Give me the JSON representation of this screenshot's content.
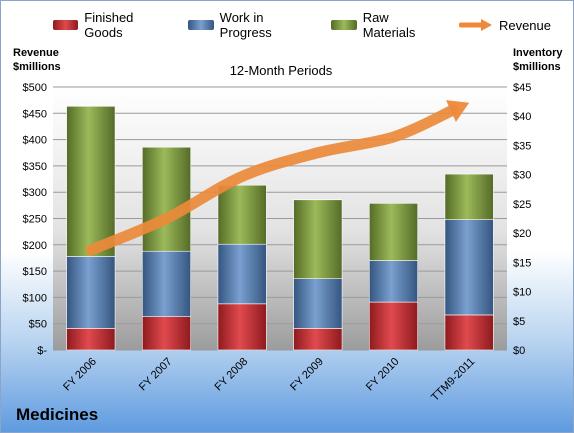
{
  "legend": {
    "finished": "Finished Goods",
    "wip": "Work in Progress",
    "raw": "Raw Materials",
    "revenue": "Revenue"
  },
  "axis": {
    "left_title_line1": "Revenue",
    "left_title_line2": "$millions",
    "right_title_line1": "Inventory",
    "right_title_line2": "$millions"
  },
  "subtitle": "12-Month Periods",
  "brand": "Medicines",
  "colors": {
    "finished": "#c0282c",
    "wip": "#4f78b0",
    "raw": "#77963a",
    "revenue": "#ec8a3a"
  },
  "chart_data": {
    "type": "bar",
    "stacked": true,
    "categories": [
      "FY 2006",
      "FY 2007",
      "FY 2008",
      "FY 2009",
      "FY 2010",
      "TTM9-2011"
    ],
    "series": [
      {
        "name": "Finished Goods",
        "axis": "right",
        "values": [
          3.7,
          5.7,
          7.9,
          3.7,
          8.2,
          6.0
        ]
      },
      {
        "name": "Work in Progress",
        "axis": "right",
        "values": [
          12.3,
          11.2,
          10.2,
          8.5,
          7.1,
          16.3
        ]
      },
      {
        "name": "Raw Materials",
        "axis": "right",
        "values": [
          25.7,
          17.8,
          10.1,
          13.5,
          9.8,
          7.8
        ]
      },
      {
        "name": "Revenue",
        "axis": "left",
        "type": "line",
        "values": [
          190,
          250,
          330,
          375,
          405,
          470
        ]
      }
    ],
    "left_axis": {
      "min": 0,
      "max": 500,
      "step": 50,
      "ticks": [
        "$-",
        "$50",
        "$100",
        "$150",
        "$200",
        "$250",
        "$300",
        "$350",
        "$400",
        "$450",
        "$500"
      ]
    },
    "right_axis": {
      "min": 0,
      "max": 45,
      "step": 5,
      "ticks": [
        "$0",
        "$5",
        "$10",
        "$15",
        "$20",
        "$25",
        "$30",
        "$35",
        "$40",
        "$45"
      ]
    },
    "grid": true,
    "legend_position": "top"
  }
}
